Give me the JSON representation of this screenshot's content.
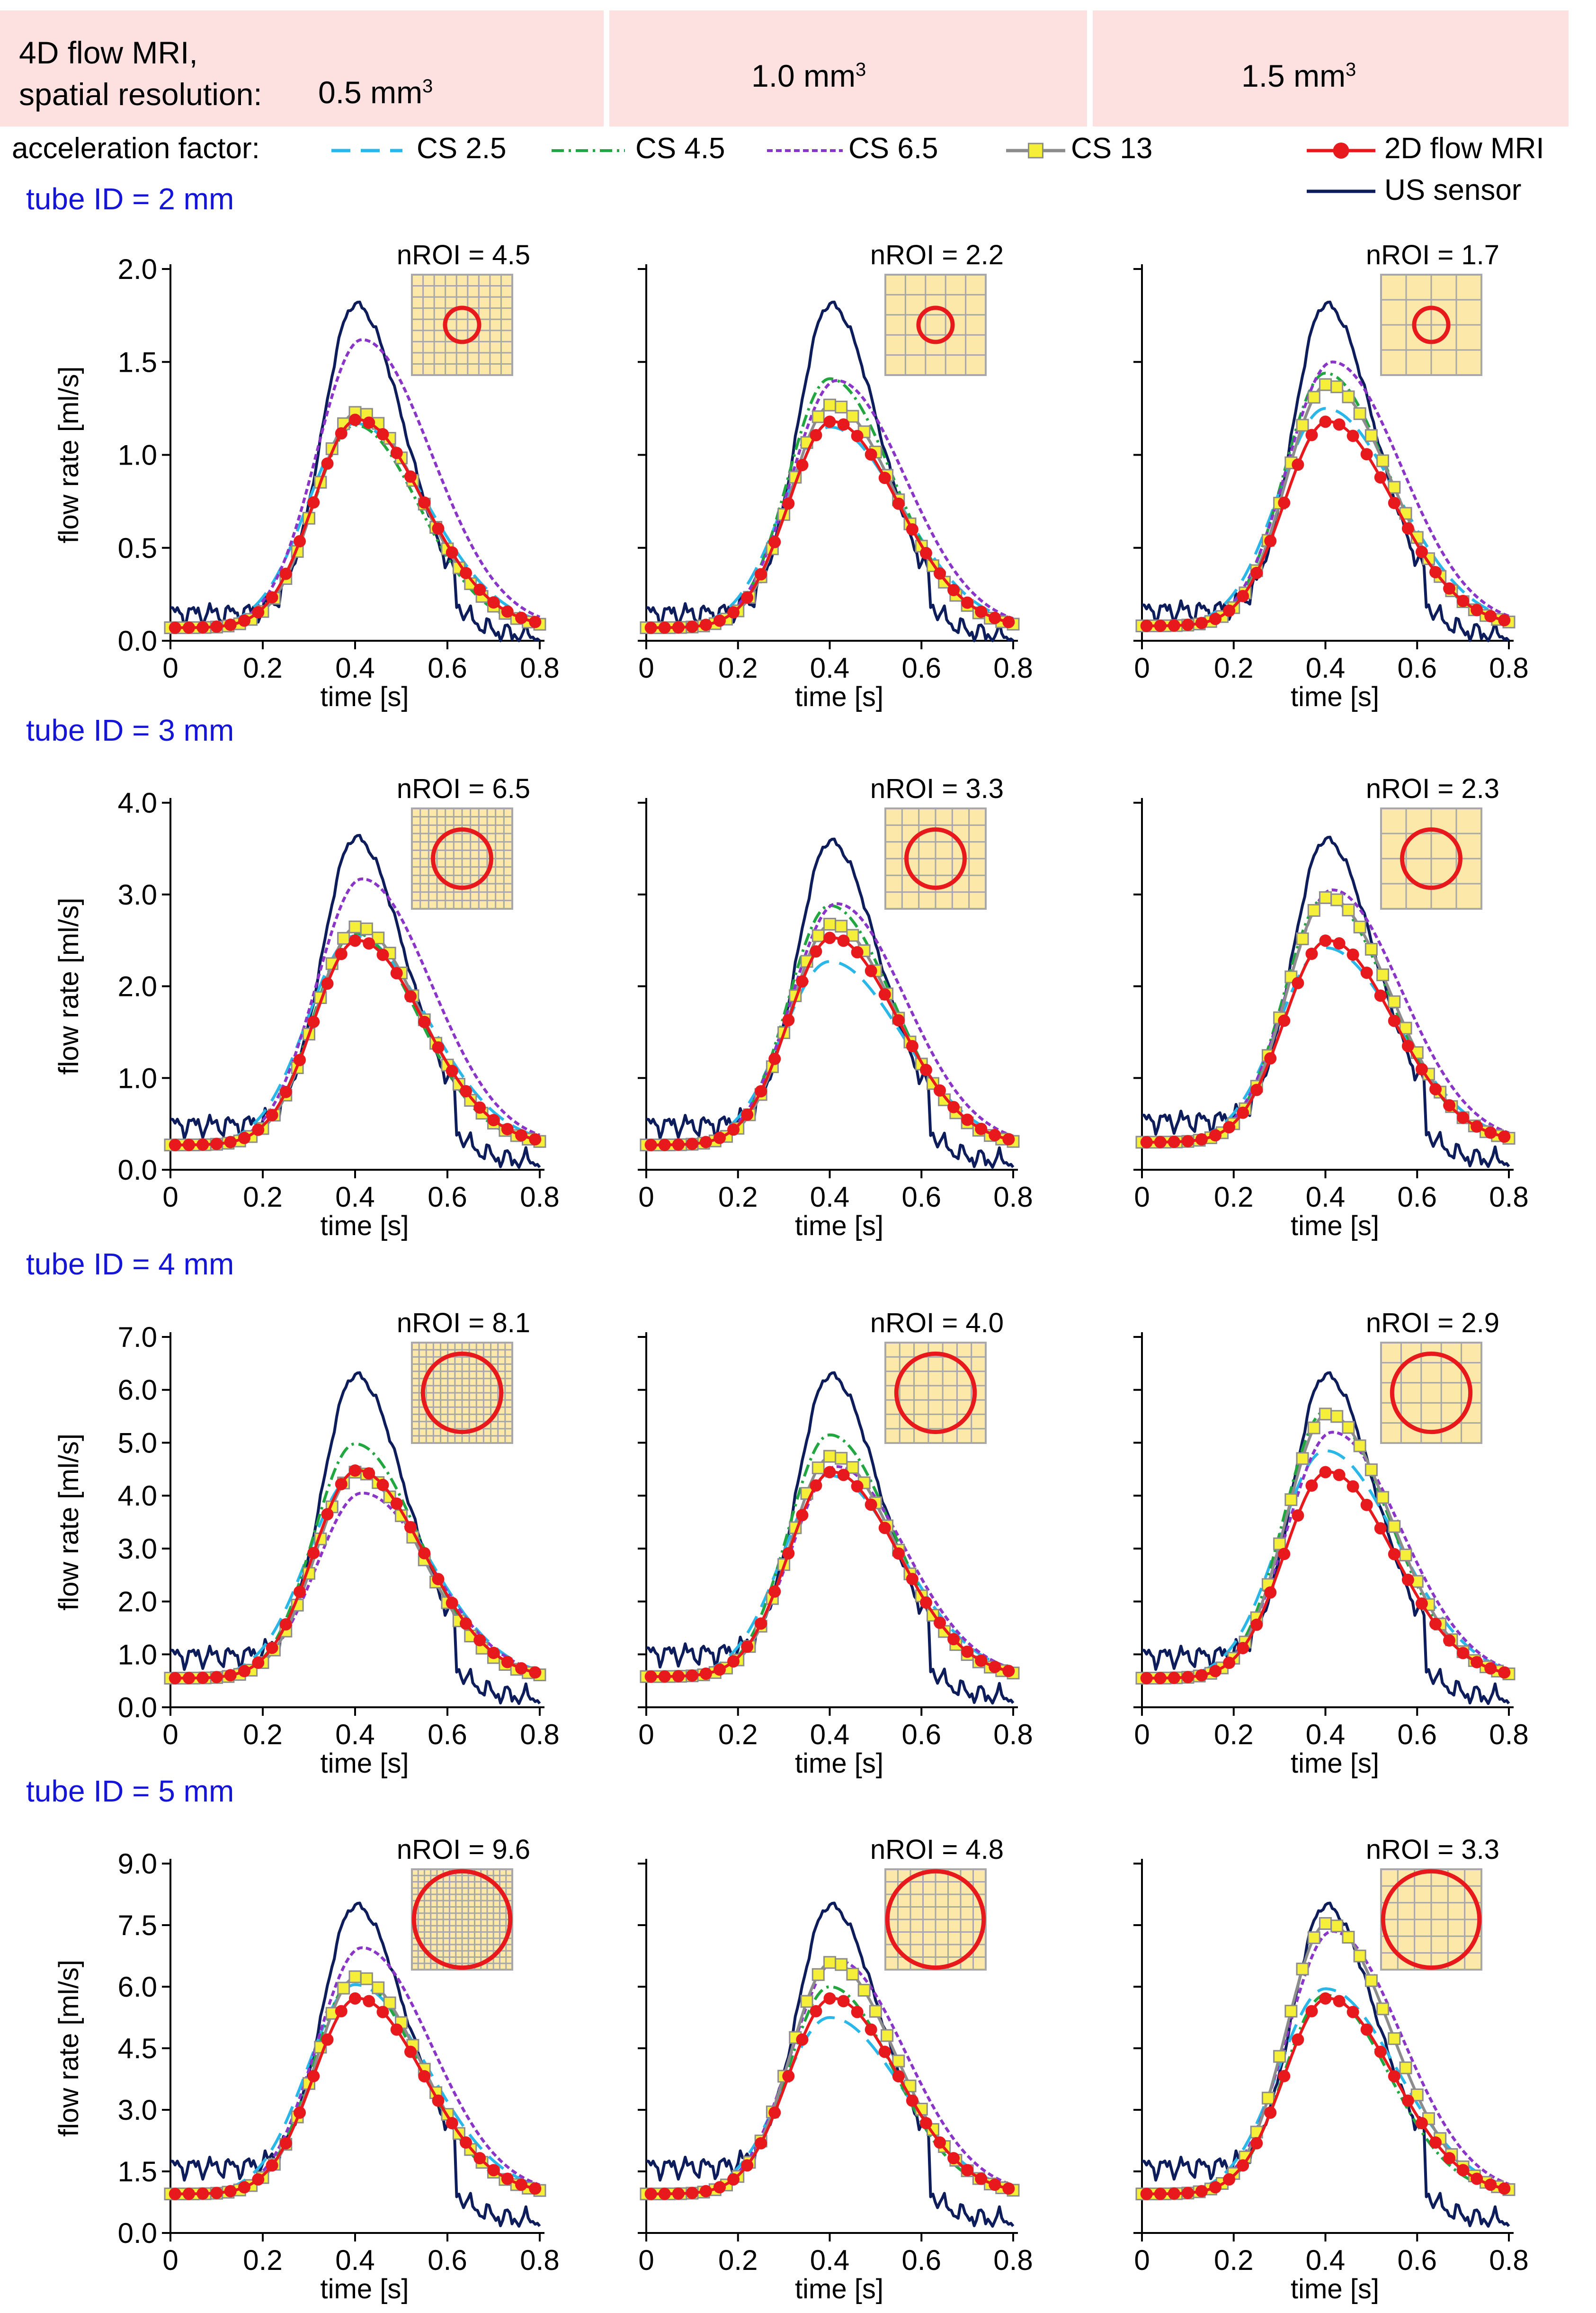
{
  "header": {
    "title_line1": "4D flow MRI,",
    "title_line2": "spatial resolution:",
    "resolutions": [
      {
        "value": "0.5 mm",
        "sup": "3"
      },
      {
        "value": "1.0 mm",
        "sup": "3"
      },
      {
        "value": "1.5 mm",
        "sup": "3"
      }
    ]
  },
  "legend": {
    "acceleration_label": "acceleration factor:",
    "items": [
      {
        "key": "cs25",
        "label": "CS 2.5",
        "color": "#29b6e8",
        "dash": "long-dash"
      },
      {
        "key": "cs45",
        "label": "CS 4.5",
        "color": "#22a640",
        "dash": "dash-dot"
      },
      {
        "key": "cs65",
        "label": "CS 6.5",
        "color": "#8b35c8",
        "dash": "dotted"
      },
      {
        "key": "cs13",
        "label": "CS 13",
        "color": "#8c8c8c",
        "marker": "square-yellow"
      },
      {
        "key": "mri2d",
        "label": "2D flow MRI",
        "color": "#e8191c",
        "marker": "circle-red"
      },
      {
        "key": "us",
        "label": "US sensor",
        "color": "#0d1c5a",
        "dash": "solid"
      }
    ]
  },
  "axis_labels": {
    "x": "time [s]",
    "y": "flow rate [ml/s]"
  },
  "chart_data": {
    "type": "line",
    "x_range": [
      0,
      0.8
    ],
    "x_ticks": [
      "0",
      "0.2",
      "0.4",
      "0.6",
      "0.8"
    ],
    "rows": [
      {
        "tube_label": "tube ID = 2 mm",
        "ylim": [
          0,
          2.0
        ],
        "y_ticks": [
          "0.0",
          "0.5",
          "1.0",
          "1.5",
          "2.0"
        ],
        "nroi": [
          "nROI = 4.5",
          "nROI = 2.2",
          "nROI = 1.7"
        ],
        "grid_cells": [
          9,
          5,
          4
        ],
        "circle_fraction": 0.34,
        "panels": [
          {
            "cs25": 1.17,
            "cs45": 1.16,
            "cs65": 1.62,
            "cs13": 1.23,
            "mri2d": 1.19,
            "us": 1.81,
            "base": 0.07
          },
          {
            "cs25": 1.15,
            "cs45": 1.41,
            "cs65": 1.4,
            "cs13": 1.27,
            "mri2d": 1.18,
            "us": 1.81,
            "base": 0.07
          },
          {
            "cs25": 1.25,
            "cs45": 1.44,
            "cs65": 1.5,
            "cs13": 1.38,
            "mri2d": 1.18,
            "us": 1.81,
            "base": 0.08
          }
        ]
      },
      {
        "tube_label": "tube ID = 3 mm",
        "ylim": [
          0,
          4.0
        ],
        "y_ticks": [
          "0.0",
          "1.0",
          "2.0",
          "3.0",
          "4.0"
        ],
        "nroi": [
          "nROI = 6.5",
          "nROI = 3.3",
          "nROI = 2.3"
        ],
        "grid_cells": [
          12,
          6,
          4
        ],
        "circle_fraction": 0.58,
        "panels": [
          {
            "cs25": 2.55,
            "cs45": 2.58,
            "cs65": 3.17,
            "cs13": 2.65,
            "mri2d": 2.5,
            "us": 3.62,
            "base": 0.27
          },
          {
            "cs25": 2.27,
            "cs45": 2.88,
            "cs65": 2.9,
            "cs13": 2.68,
            "mri2d": 2.53,
            "us": 3.58,
            "base": 0.27
          },
          {
            "cs25": 2.42,
            "cs45": 2.97,
            "cs65": 3.05,
            "cs13": 2.97,
            "mri2d": 2.5,
            "us": 3.6,
            "base": 0.3
          }
        ]
      },
      {
        "tube_label": "tube ID = 4 mm",
        "ylim": [
          0,
          7.0
        ],
        "y_ticks": [
          "0.0",
          "1.0",
          "2.0",
          "3.0",
          "4.0",
          "5.0",
          "6.0",
          "7.0"
        ],
        "nroi": [
          "nROI = 8.1",
          "nROI = 4.0",
          "nROI = 2.9"
        ],
        "grid_cells": [
          14,
          7,
          5
        ],
        "circle_fraction": 0.78,
        "panels": [
          {
            "cs25": 4.38,
            "cs45": 4.98,
            "cs65": 4.05,
            "cs13": 4.45,
            "mri2d": 4.48,
            "us": 6.28,
            "base": 0.55
          },
          {
            "cs25": 4.38,
            "cs45": 5.15,
            "cs65": 4.55,
            "cs13": 4.75,
            "mri2d": 4.45,
            "us": 6.28,
            "base": 0.58
          },
          {
            "cs25": 4.85,
            "cs45": 5.6,
            "cs65": 5.2,
            "cs13": 5.55,
            "mri2d": 4.45,
            "us": 6.28,
            "base": 0.55
          }
        ]
      },
      {
        "tube_label": "tube ID = 5 mm",
        "ylim": [
          0,
          9.0
        ],
        "y_ticks": [
          "0.0",
          "1.5",
          "3.0",
          "4.5",
          "6.0",
          "7.5",
          "9.0"
        ],
        "nroi": [
          "nROI = 9.6",
          "nROI = 4.8",
          "nROI = 3.3"
        ],
        "grid_cells": [
          16,
          8,
          6
        ],
        "circle_fraction": 0.96,
        "panels": [
          {
            "cs25": 6.05,
            "cs45": 6.2,
            "cs65": 6.95,
            "cs13": 6.25,
            "mri2d": 5.72,
            "us": 7.98,
            "base": 0.95
          },
          {
            "cs25": 5.25,
            "cs45": 6.0,
            "cs65": 6.65,
            "cs13": 6.6,
            "mri2d": 5.72,
            "us": 7.98,
            "base": 0.95
          },
          {
            "cs25": 5.95,
            "cs45": 5.8,
            "cs65": 7.35,
            "cs13": 7.55,
            "mri2d": 5.72,
            "us": 7.98,
            "base": 0.95
          }
        ]
      }
    ]
  }
}
